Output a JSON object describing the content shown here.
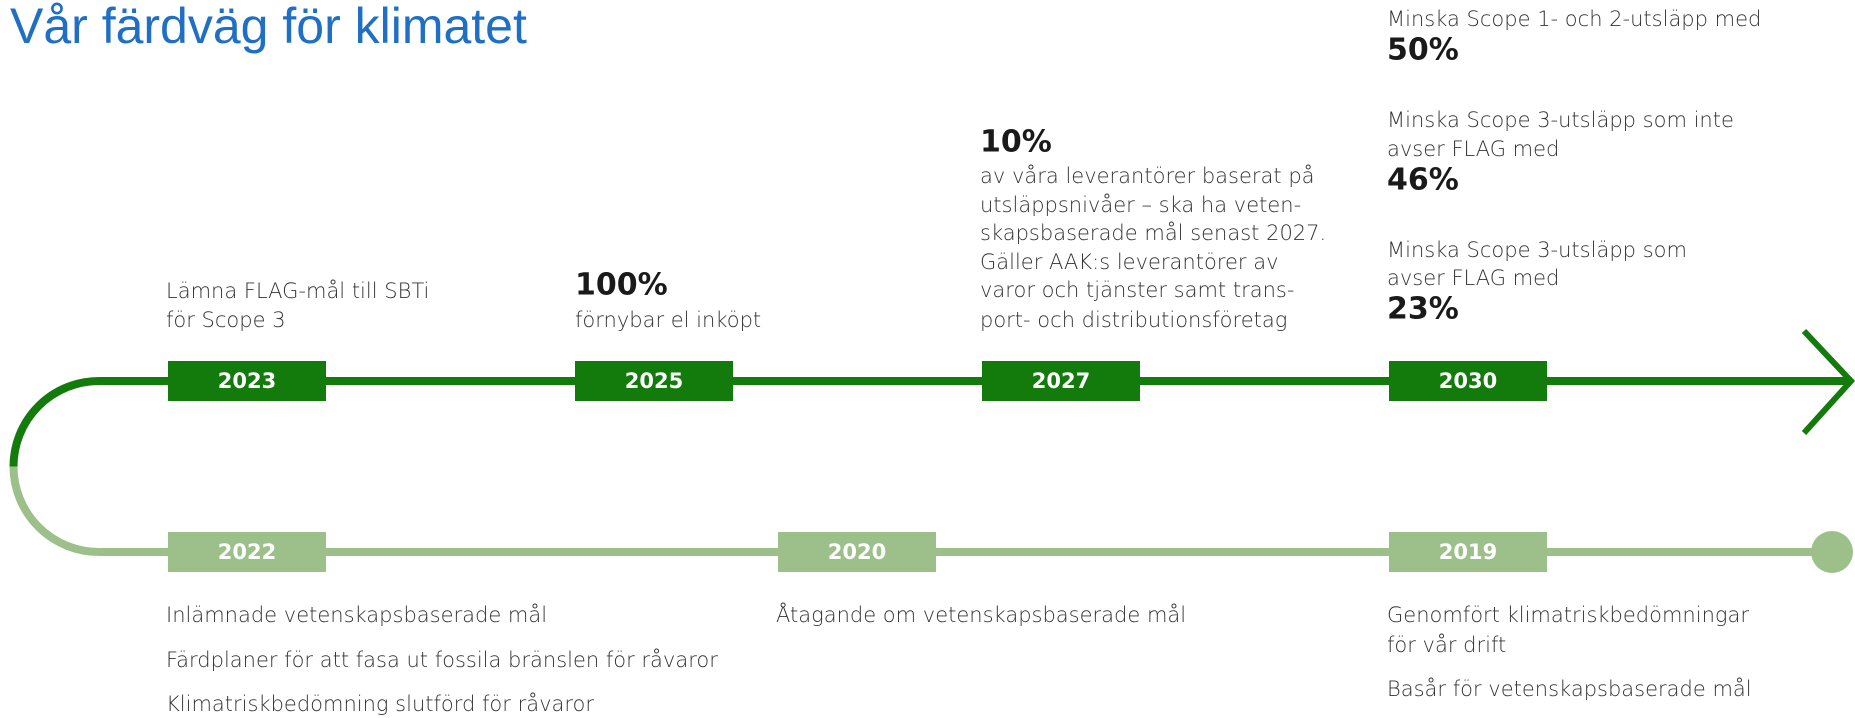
{
  "title": "Vår färdväg för klimatet",
  "upper": [
    {
      "year": "2023",
      "lines": [
        "Lämna FLAG-mål till SBTi",
        "för Scope 3"
      ]
    },
    {
      "year": "2025",
      "highlight": "100%",
      "lines": [
        "förnybar el inköpt"
      ]
    },
    {
      "year": "2027",
      "highlight": "10%",
      "lines": [
        "av våra leverantörer baserat på",
        "utsläppsnivåer – ska ha veten-",
        "skapsbaserade mål senast 2027.",
        "Gäller AAK:s leverantörer av",
        "varor och tjänster samt trans-",
        "port- och distributionsföretag"
      ]
    },
    {
      "year": "2030",
      "goals": [
        {
          "lines": [
            "Minska Scope 1- och 2-utsläpp med"
          ],
          "highlight": "50%"
        },
        {
          "lines": [
            "Minska Scope 3-utsläpp som inte",
            "avser FLAG med"
          ],
          "highlight": "46%"
        },
        {
          "lines": [
            "Minska Scope 3-utsläpp som",
            "avser FLAG med"
          ],
          "highlight": "23%"
        }
      ]
    }
  ],
  "lower": [
    {
      "year": "2022",
      "lines": [
        "Inlämnade vetenskapsbaserade mål",
        "Färdplaner för att fasa ut fossila bränslen för råvaror",
        "Klimatriskbedömning slutförd för råvaror"
      ]
    },
    {
      "year": "2020",
      "lines": [
        "Åtagande om vetenskapsbaserade mål"
      ]
    },
    {
      "year": "2019",
      "lines": [
        "Genomfört klimatriskbedömningar",
        "för vår drift",
        "Basår för vetenskapsbaserade mål"
      ]
    }
  ]
}
